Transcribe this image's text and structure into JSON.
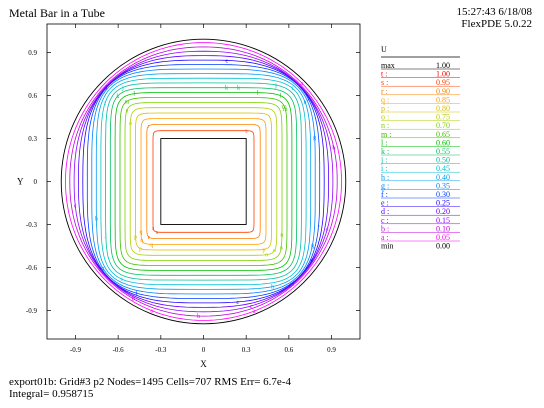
{
  "header": {
    "title": "Metal Bar in a Tube",
    "time": "15:27:43 6/18/08",
    "version": "FlexPDE 5.0.22"
  },
  "footer": {
    "line1": "export01b:  Grid#3  p2  Nodes=1495 Cells=707 RMS Err= 6.7e-4",
    "line2": "Integral=  0.958715"
  },
  "chart_data": {
    "type": "contour",
    "title": "Metal Bar in a Tube",
    "xlabel": "X",
    "ylabel": "Y",
    "variable": "U",
    "xlim": [
      -1.1,
      1.1
    ],
    "ylim": [
      -1.1,
      1.1
    ],
    "x_ticks": [
      -0.9,
      -0.6,
      -0.3,
      0,
      0.3,
      0.6,
      0.9
    ],
    "y_ticks": [
      0.9,
      0.6,
      0.3,
      0,
      -0.3,
      -0.6,
      -0.9
    ],
    "x_tick_labels": [
      "-0.9",
      "-0.6",
      "-0.3",
      "0",
      "0.3",
      "0.6",
      "0.9"
    ],
    "y_tick_labels": [
      "0.9",
      "0.6",
      "0.3",
      "0",
      "-0.3",
      "-0.6",
      "-0.9"
    ],
    "domain": {
      "outer_radius": 1.0,
      "inner_square_half": 0.3
    },
    "legend_title": "U",
    "legend_max": {
      "label": "max",
      "value": "1.00"
    },
    "legend_min": {
      "label": "min",
      "value": "0.00"
    },
    "levels": [
      {
        "label": "t",
        "value": "1.00",
        "color": "#ff0000"
      },
      {
        "label": "s",
        "value": "0.95",
        "color": "#ff4000"
      },
      {
        "label": "r",
        "value": "0.90",
        "color": "#ff8000"
      },
      {
        "label": "q",
        "value": "0.85",
        "color": "#ffa000"
      },
      {
        "label": "p",
        "value": "0.80",
        "color": "#d8c000"
      },
      {
        "label": "o",
        "value": "0.75",
        "color": "#b0d000"
      },
      {
        "label": "n",
        "value": "0.70",
        "color": "#80d000"
      },
      {
        "label": "m",
        "value": "0.65",
        "color": "#40c000"
      },
      {
        "label": "l",
        "value": "0.60",
        "color": "#00c000"
      },
      {
        "label": "k",
        "value": "0.55",
        "color": "#00c060"
      },
      {
        "label": "j",
        "value": "0.50",
        "color": "#00c0a0"
      },
      {
        "label": "i",
        "value": "0.45",
        "color": "#00c0d0"
      },
      {
        "label": "h",
        "value": "0.40",
        "color": "#00a0f0"
      },
      {
        "label": "g",
        "value": "0.35",
        "color": "#0080ff"
      },
      {
        "label": "f",
        "value": "0.30",
        "color": "#0040ff"
      },
      {
        "label": "e",
        "value": "0.25",
        "color": "#2000ff"
      },
      {
        "label": "d",
        "value": "0.20",
        "color": "#6000ff"
      },
      {
        "label": "c",
        "value": "0.15",
        "color": "#9000ff"
      },
      {
        "label": "b",
        "value": "0.10",
        "color": "#c000e0"
      },
      {
        "label": "a",
        "value": "0.05",
        "color": "#ff00ff"
      }
    ]
  }
}
